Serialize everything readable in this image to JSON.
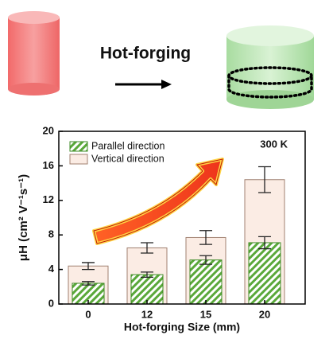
{
  "schematic": {
    "label": "Hot-forging"
  },
  "chart_data": {
    "type": "bar",
    "categories": [
      "0",
      "12",
      "15",
      "20"
    ],
    "series": [
      {
        "name": "Vertical direction",
        "color": "#fbece4",
        "values": [
          4.4,
          6.5,
          7.7,
          14.4
        ],
        "errors": [
          0.4,
          0.6,
          0.8,
          1.5
        ]
      },
      {
        "name": "Parallel direction",
        "color": "#5aa83a",
        "values": [
          2.4,
          3.4,
          5.1,
          7.1
        ],
        "errors": [
          0.2,
          0.3,
          0.5,
          0.7
        ]
      }
    ],
    "ylim": [
      0,
      20
    ],
    "yticks": [
      0,
      4,
      8,
      12,
      16,
      20
    ],
    "xlabel": "Hot-forging Size (mm)",
    "ylabel": "μH (cm² V⁻¹s⁻¹)",
    "annotation": "300 K",
    "legend": "upper left"
  }
}
